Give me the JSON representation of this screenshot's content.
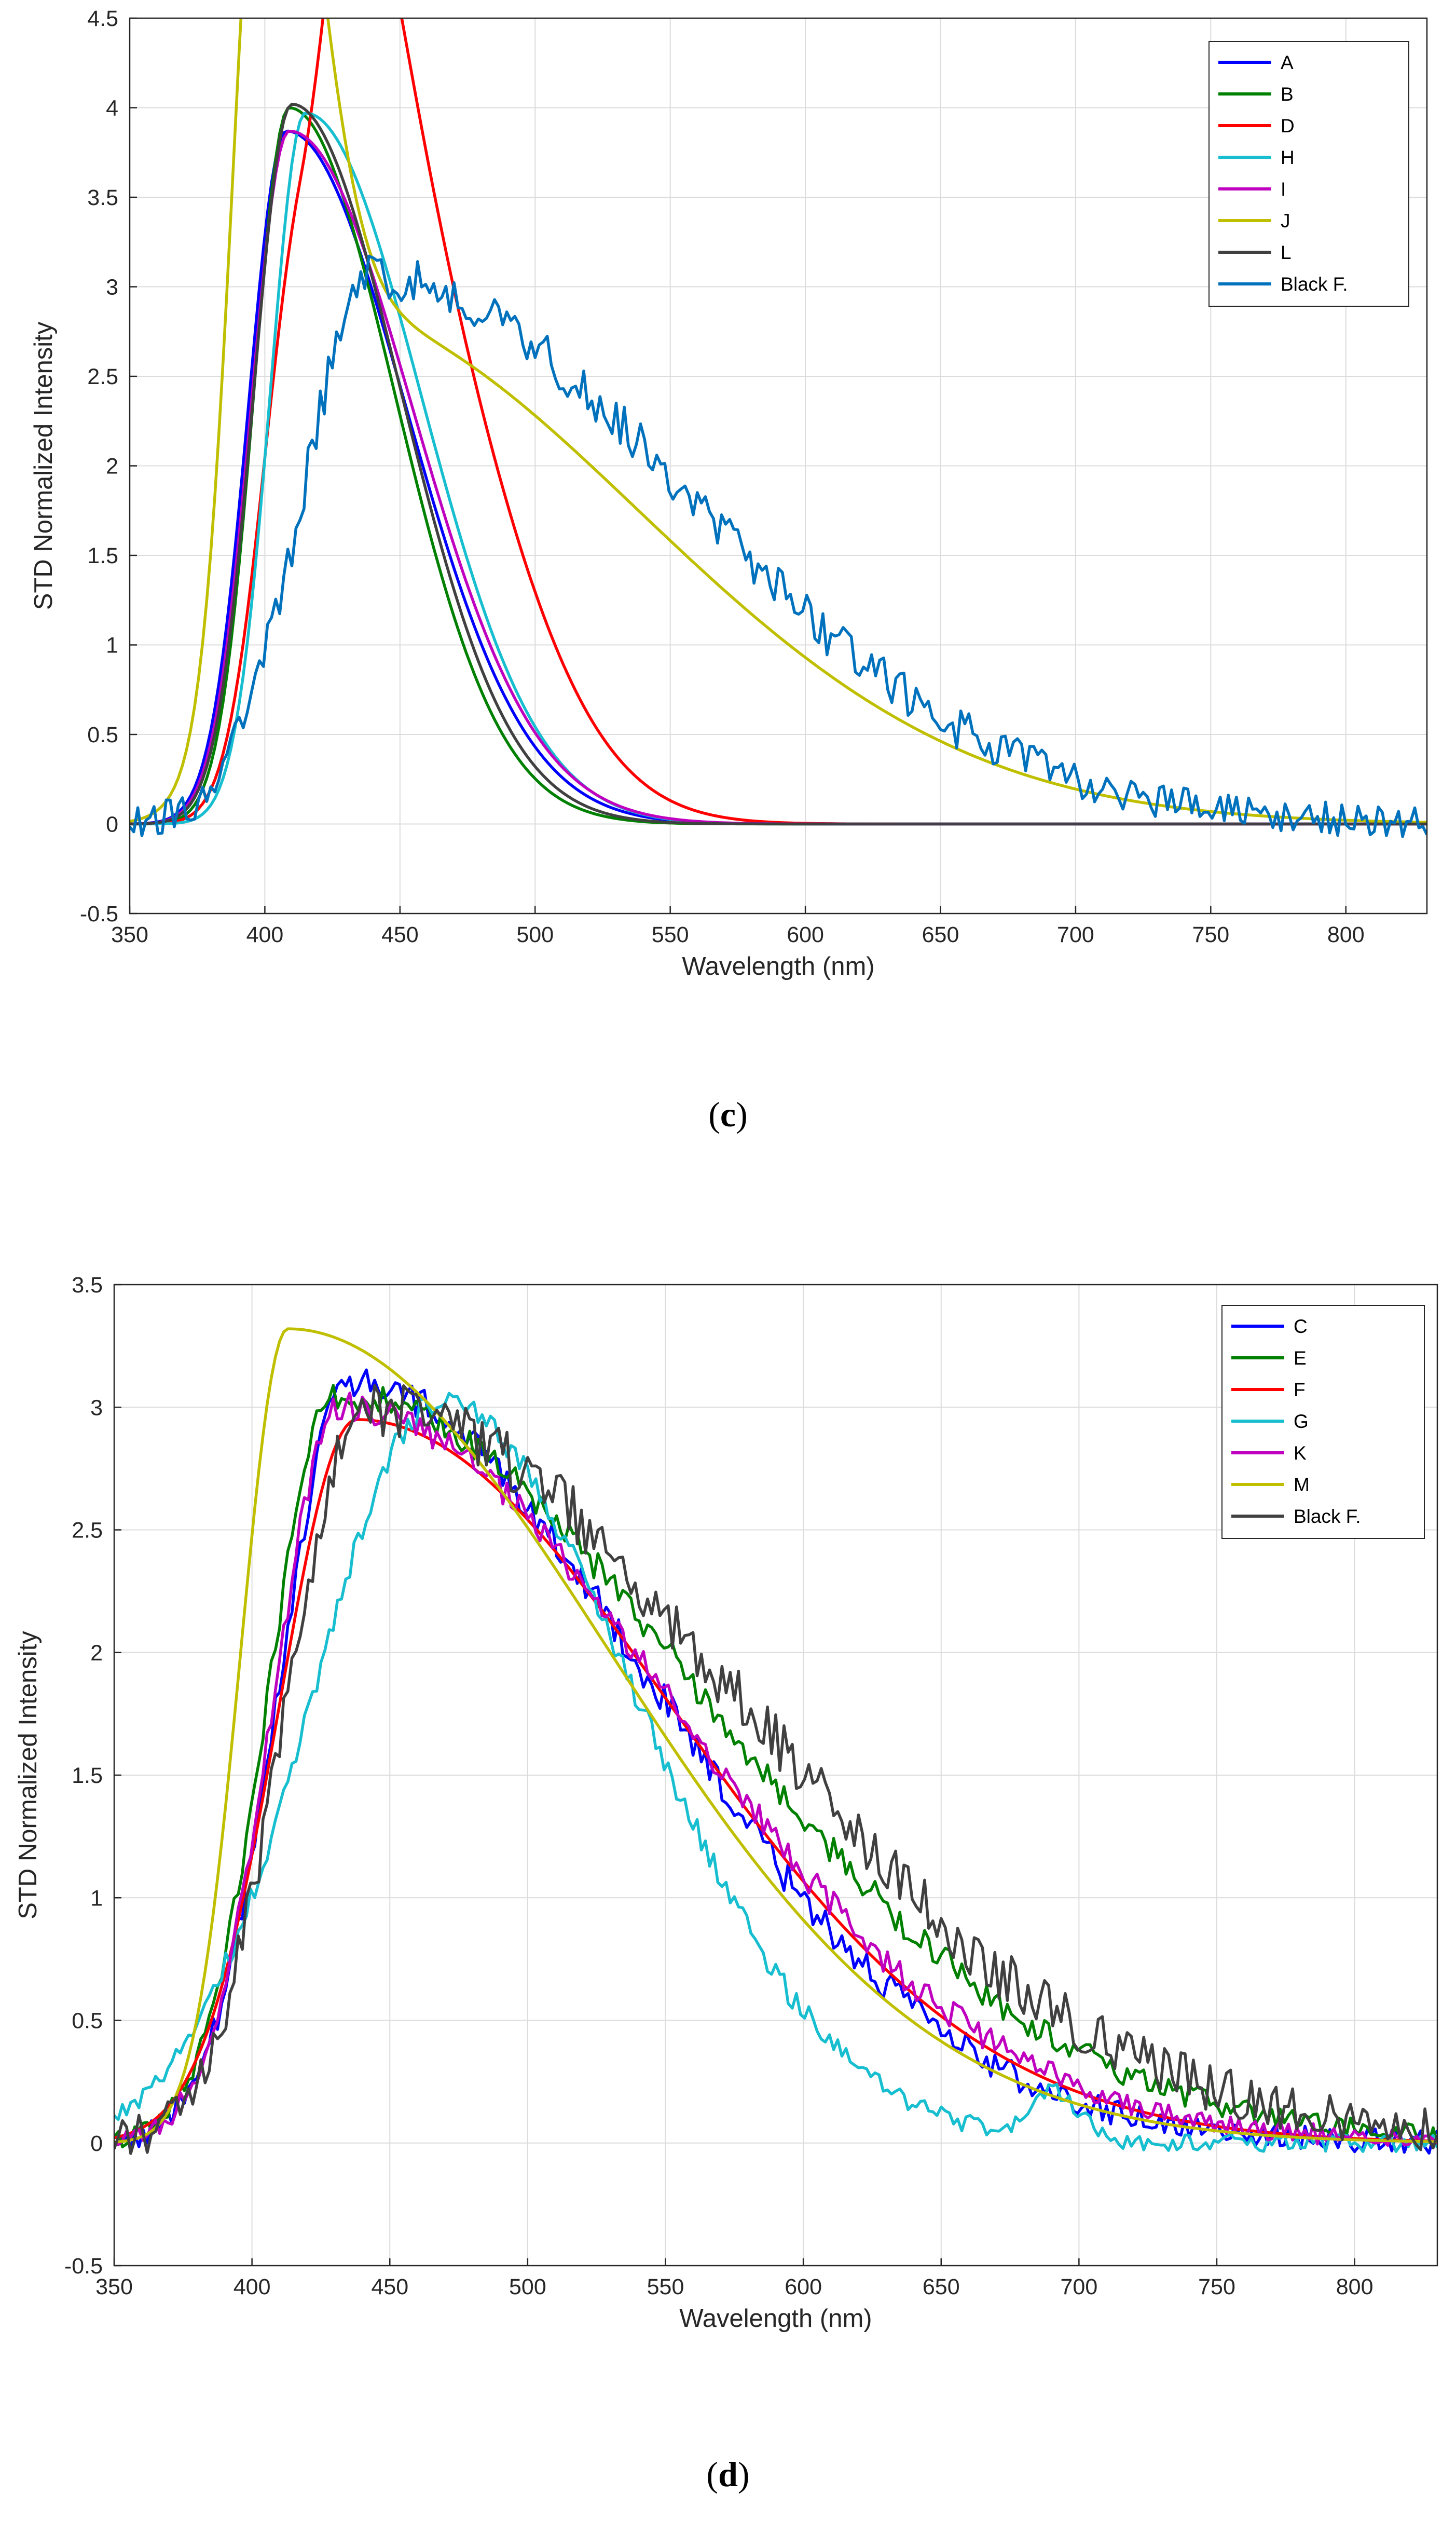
{
  "chart_data": [
    {
      "id": "c",
      "type": "line",
      "caption": "c",
      "xlabel": "Wavelength (nm)",
      "ylabel": "STD Normalized Intensity",
      "xlim": [
        350,
        830
      ],
      "ylim": [
        -0.5,
        4.5
      ],
      "xticks": [
        350,
        400,
        450,
        500,
        550,
        600,
        650,
        700,
        750,
        800
      ],
      "xtick_labels": [
        "350",
        "400",
        "450",
        "500",
        "550",
        "600",
        "650",
        "700",
        "750",
        "800"
      ],
      "yticks": [
        -0.5,
        0,
        0.5,
        1,
        1.5,
        2,
        2.5,
        3,
        3.5,
        4,
        4.5
      ],
      "ytick_labels": [
        "-0.5",
        "0",
        "0.5",
        "1",
        "1.5",
        "2",
        "2.5",
        "3",
        "3.5",
        "4",
        "4.5"
      ],
      "grid": true,
      "legend_position": "top-right",
      "series": [
        {
          "name": "A",
          "color": "#0000ff",
          "peak": 408,
          "amp": 3.87,
          "sl": 14,
          "sr": 34,
          "noise": 0
        },
        {
          "name": "B",
          "color": "#008000",
          "peak": 409,
          "amp": 4.0,
          "sl": 13,
          "sr": 30,
          "noise": 0
        },
        {
          "name": "D",
          "color": "#ff0000",
          "components": [
            {
              "peak": 413,
              "amp": 3.1,
              "sl": 14,
              "sr": 20
            },
            {
              "peak": 437,
              "amp": 3.6,
              "sl": 12,
              "sr": 34
            }
          ],
          "noise": 0
        },
        {
          "name": "H",
          "color": "#17becf",
          "peak": 415,
          "amp": 3.97,
          "sl": 13,
          "sr": 33,
          "noise": 0
        },
        {
          "name": "I",
          "color": "#bf00bf",
          "peak": 409,
          "amp": 3.87,
          "sl": 14,
          "sr": 35,
          "noise": 0
        },
        {
          "name": "J",
          "color": "#bfbf00",
          "components": [
            {
              "peak": 399,
              "amp": 3.97,
              "sl": 11,
              "sr": 14
            },
            {
              "peak": 415,
              "amp": 2.9,
              "sl": 20,
              "sr": 95
            }
          ],
          "noise": 0
        },
        {
          "name": "L",
          "color": "#404040",
          "peak": 410,
          "amp": 4.02,
          "sl": 14,
          "sr": 31,
          "noise": 0
        },
        {
          "name": "Black F.",
          "color": "#0072bd",
          "peak": 440,
          "amp": 3.05,
          "sl": 26,
          "sr": 90,
          "noise": 0.13
        }
      ]
    },
    {
      "id": "d",
      "type": "line",
      "caption": "d",
      "xlabel": "Wavelength (nm)",
      "ylabel": "STD Normalized Intensity",
      "xlim": [
        350,
        830
      ],
      "ylim": [
        -0.5,
        3.5
      ],
      "xticks": [
        350,
        400,
        450,
        500,
        550,
        600,
        650,
        700,
        750,
        800
      ],
      "xtick_labels": [
        "350",
        "400",
        "450",
        "500",
        "550",
        "600",
        "650",
        "700",
        "750",
        "800"
      ],
      "yticks": [
        -0.5,
        0,
        0.5,
        1,
        1.5,
        2,
        2.5,
        3,
        3.5
      ],
      "ytick_labels": [
        "-0.5",
        "0",
        "0.5",
        "1",
        "1.5",
        "2",
        "2.5",
        "3",
        "3.5"
      ],
      "grid": true,
      "legend_position": "top-right",
      "series": [
        {
          "name": "C",
          "color": "#0000ff",
          "peak": 435,
          "amp": 3.1,
          "sl": 25,
          "sr": 85,
          "noise": 0.07
        },
        {
          "name": "E",
          "color": "#008000",
          "peak": 430,
          "amp": 3.05,
          "sl": 24,
          "sr": 102,
          "noise": 0.06
        },
        {
          "name": "F",
          "color": "#ff0000",
          "peak": 438,
          "amp": 2.95,
          "sl": 28,
          "sr": 88,
          "noise": 0
        },
        {
          "name": "G",
          "color": "#17becf",
          "components": [
            {
              "peak": 468,
              "amp": 3.02,
              "sl": 46,
              "sr": 55
            },
            {
              "peak": 690,
              "amp": 0.2,
              "sl": 7,
              "sr": 7
            }
          ],
          "noise": 0.05
        },
        {
          "name": "K",
          "color": "#bf00bf",
          "peak": 432,
          "amp": 3.0,
          "sl": 24,
          "sr": 92,
          "noise": 0.06
        },
        {
          "name": "M",
          "color": "#bfbf00",
          "peak": 413,
          "amp": 3.32,
          "sl": 17,
          "sr": 90,
          "noise": 0
        },
        {
          "name": "Black F.",
          "color": "#404040",
          "peak": 440,
          "amp": 3.0,
          "sl": 27,
          "sr": 105,
          "noise": 0.12
        }
      ]
    }
  ]
}
